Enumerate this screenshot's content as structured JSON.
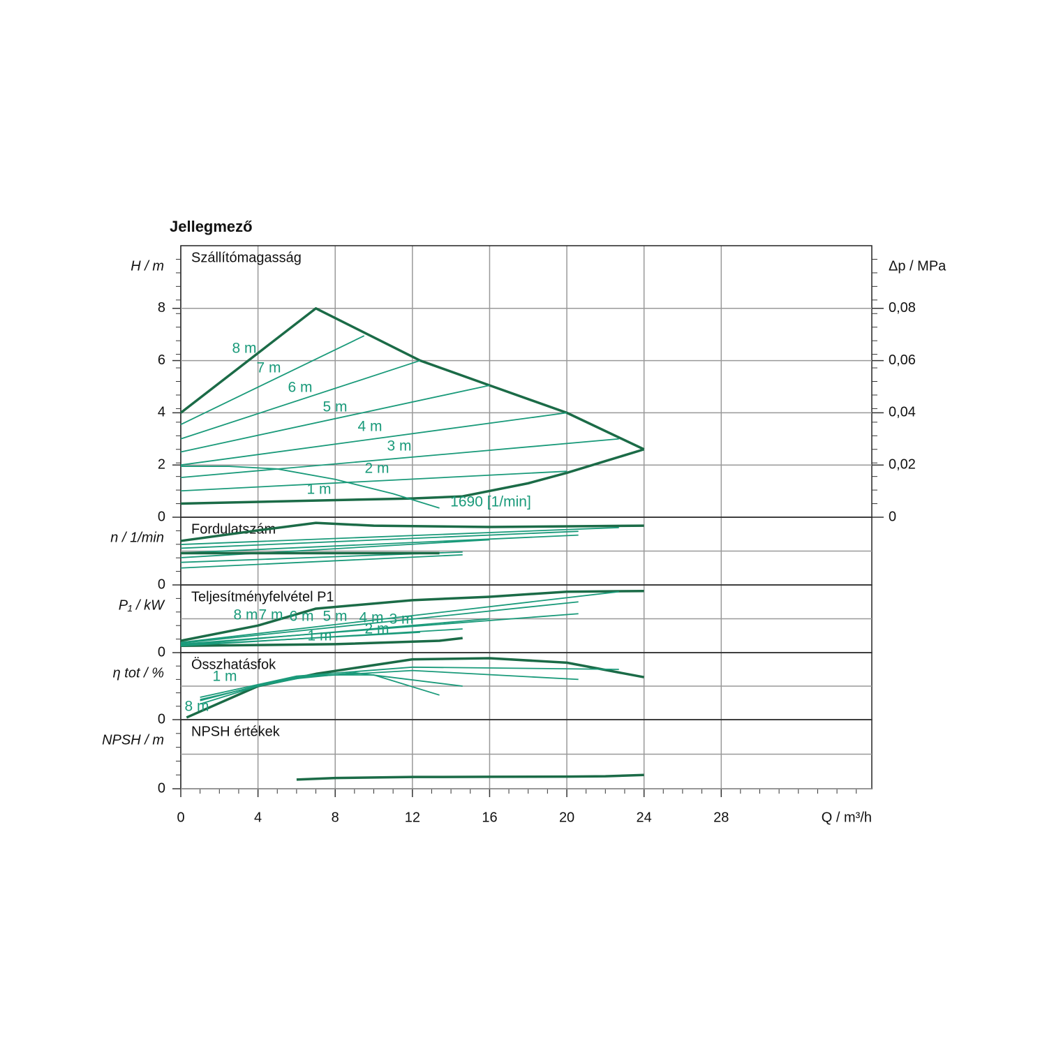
{
  "chart_data": {
    "type": "line",
    "title": "Jellegmező",
    "xlabel": "Q / m³/h",
    "xlim": [
      0,
      35.8
    ],
    "xticks": [
      0,
      4,
      8,
      12,
      16,
      20,
      24,
      28
    ],
    "panels": [
      {
        "title": "Szállítómagasság",
        "ylabel": "H / m",
        "ylim": [
          0,
          10.4
        ],
        "yticks": [
          0,
          2,
          4,
          6,
          8
        ],
        "y2label": "Δp / MPa",
        "y2lim": [
          0,
          0.104
        ],
        "y2ticks": [
          0,
          {
            "value": 0.02,
            "label": "0,02"
          },
          {
            "value": 0.04,
            "label": "0,04"
          },
          {
            "value": 0.06,
            "label": "0,06"
          },
          {
            "value": 0.08,
            "label": "0,08"
          }
        ],
        "series": [
          {
            "label": "8 m",
            "color": "#1b6b47",
            "bold": true,
            "x": [
              0,
              7,
              12.4,
              16,
              20,
              24
            ],
            "values": [
              4,
              8,
              6,
              5.05,
              4,
              2.6
            ]
          },
          {
            "label": "1 m",
            "color": "#1b6b47",
            "bold": true,
            "x": [
              0,
              6,
              12,
              14.6,
              18,
              20,
              22,
              24
            ],
            "values": [
              0.52,
              0.62,
              0.72,
              0.8,
              1.3,
              1.7,
              2.15,
              2.6
            ]
          },
          {
            "label": "7 m",
            "color": "#1a9a7a",
            "x": [
              0,
              9.5
            ],
            "values": [
              3.55,
              6.95
            ]
          },
          {
            "label": "6 m",
            "color": "#1a9a7a",
            "x": [
              0,
              12.4
            ],
            "values": [
              3.0,
              6.0
            ]
          },
          {
            "label": "5 m",
            "color": "#1a9a7a",
            "x": [
              0,
              16
            ],
            "values": [
              2.5,
              5.05
            ]
          },
          {
            "label": "4 m",
            "color": "#1a9a7a",
            "x": [
              0,
              20
            ],
            "values": [
              2.0,
              4.0
            ]
          },
          {
            "label": "3 m",
            "color": "#1a9a7a",
            "x": [
              0,
              22.7
            ],
            "values": [
              1.52,
              3.0
            ]
          },
          {
            "label": "2 m",
            "color": "#1a9a7a",
            "x": [
              0,
              20
            ],
            "values": [
              1.01,
              1.76
            ]
          },
          {
            "label": "1690 [1/min]",
            "color": "#1a9a7a",
            "x": [
              0,
              2.5,
              5,
              8,
              11,
              13.4
            ],
            "values": [
              1.95,
              1.95,
              1.85,
              1.45,
              0.9,
              0.35
            ]
          }
        ]
      },
      {
        "title": "Fordulatszám",
        "ylabel": "n / 1/min",
        "ylim": [
          0,
          3600
        ],
        "yticks": [
          0
        ],
        "series": [
          {
            "color": "#1b6b47",
            "bold": true,
            "x": [
              0,
              4,
              7,
              10,
              16,
              24
            ],
            "values": [
              2340,
              2900,
              3300,
              3150,
              3080,
              3150
            ]
          },
          {
            "color": "#1a9a7a",
            "x": [
              0,
              22.7
            ],
            "values": [
              2150,
              3050
            ]
          },
          {
            "color": "#1a9a7a",
            "x": [
              0,
              20.6
            ],
            "values": [
              1950,
              2850
            ]
          },
          {
            "color": "#1a9a7a",
            "x": [
              0,
              20.6
            ],
            "values": [
              1700,
              2650
            ]
          },
          {
            "color": "#1a9a7a",
            "x": [
              0,
              16
            ],
            "values": [
              1450,
              2400
            ]
          },
          {
            "color": "#1a9a7a",
            "x": [
              0,
              14.6
            ],
            "values": [
              1200,
              1750
            ]
          },
          {
            "color": "#1a9a7a",
            "x": [
              0,
              14.6
            ],
            "values": [
              900,
              1600
            ]
          },
          {
            "color": "#1b6b47",
            "bold": true,
            "x": [
              0,
              13.4
            ],
            "values": [
              1690,
              1690
            ]
          }
        ]
      },
      {
        "title": "Teljesítményfelvétel P1",
        "ylabel": "P₁ / kW",
        "ylim": [
          0,
          0.2
        ],
        "yticks": [
          0
        ],
        "series": [
          {
            "label": "8 m",
            "color": "#1b6b47",
            "bold": true,
            "x": [
              0,
              4,
              7,
              12,
              16,
              20,
              24
            ],
            "values": [
              0.035,
              0.08,
              0.13,
              0.155,
              0.165,
              0.18,
              0.182
            ]
          },
          {
            "label": "1 m",
            "color": "#1b6b47",
            "bold": true,
            "x": [
              0,
              8,
              13.4,
              14.6
            ],
            "values": [
              0.02,
              0.025,
              0.035,
              0.043
            ]
          },
          {
            "label": "7 m",
            "color": "#1a9a7a",
            "x": [
              0,
              22.7
            ],
            "values": [
              0.03,
              0.18
            ]
          },
          {
            "label": "6 m",
            "color": "#1a9a7a",
            "x": [
              0,
              20.6
            ],
            "values": [
              0.028,
              0.15
            ]
          },
          {
            "label": "5 m",
            "color": "#1a9a7a",
            "x": [
              0,
              20.6
            ],
            "values": [
              0.025,
              0.115
            ]
          },
          {
            "label": "4 m",
            "color": "#1a9a7a",
            "x": [
              0,
              16
            ],
            "values": [
              0.022,
              0.1
            ]
          },
          {
            "label": "3 m",
            "color": "#1a9a7a",
            "x": [
              0,
              14.6
            ],
            "values": [
              0.02,
              0.07
            ]
          },
          {
            "label": "2 m",
            "color": "#1a9a7a",
            "x": [
              0,
              12.4
            ],
            "values": [
              0.022,
              0.06
            ]
          }
        ]
      },
      {
        "title": "Összhatásfok",
        "ylabel": "η tot / %",
        "ylim": [
          0,
          60
        ],
        "yticks": [
          0
        ],
        "series": [
          {
            "label": "8 m",
            "color": "#1b6b47",
            "bold": true,
            "x": [
              0.3,
              4,
              7,
              12,
              16,
              20,
              24
            ],
            "values": [
              1.9,
              30,
              41,
              54,
              55,
              51,
              38
            ]
          },
          {
            "label": "1 m",
            "color": "#1a9a7a",
            "x": [
              1,
              4,
              7,
              10,
              13.4
            ],
            "values": [
              14,
              30,
              40,
              40,
              22
            ]
          },
          {
            "color": "#1a9a7a",
            "x": [
              1,
              5,
              9,
              14.6
            ],
            "values": [
              17,
              35,
              42,
              30
            ]
          },
          {
            "color": "#1a9a7a",
            "x": [
              1,
              6,
              12,
              20.6
            ],
            "values": [
              18,
              38,
              44,
              36
            ]
          },
          {
            "color": "#1a9a7a",
            "x": [
              1,
              6,
              12,
              22.7
            ],
            "values": [
              20,
              39,
              47,
              45
            ]
          }
        ]
      },
      {
        "title": "NPSH értékek",
        "ylabel": "NPSH / m",
        "ylim": [
          0,
          4
        ],
        "yticks": [
          0
        ],
        "series": [
          {
            "color": "#1b6b47",
            "bold": true,
            "x": [
              6,
              8,
              12,
              16,
              20,
              22,
              24
            ],
            "values": [
              0.53,
              0.62,
              0.68,
              0.69,
              0.7,
              0.72,
              0.8
            ]
          }
        ]
      }
    ]
  }
}
